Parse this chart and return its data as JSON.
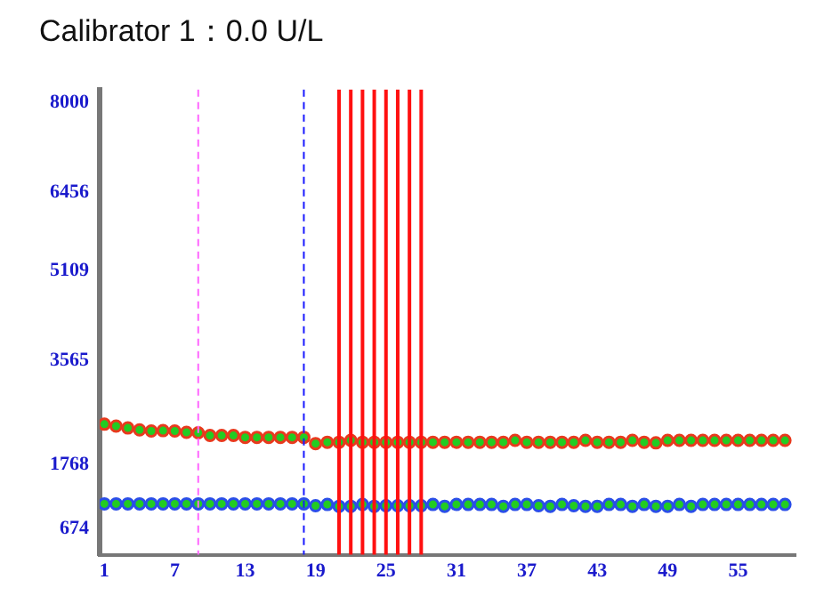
{
  "chart_data": {
    "type": "scatter",
    "title": "Calibrator 1：0.0 U/L",
    "x": [
      1,
      2,
      3,
      4,
      5,
      6,
      7,
      8,
      9,
      10,
      11,
      12,
      13,
      14,
      15,
      16,
      17,
      18,
      19,
      20,
      21,
      22,
      23,
      24,
      25,
      26,
      27,
      28,
      29,
      30,
      31,
      32,
      33,
      34,
      35,
      36,
      37,
      38,
      39,
      40,
      41,
      42,
      43,
      44,
      45,
      46,
      47,
      48,
      49,
      50,
      51,
      52,
      53,
      54,
      55,
      56,
      57,
      58,
      59
    ],
    "series": [
      {
        "color": "#e83a1e",
        "values": [
          2466,
          2433,
          2401,
          2368,
          2349,
          2355,
          2349,
          2326,
          2317,
          2271,
          2271,
          2271,
          2239,
          2239,
          2239,
          2239,
          2239,
          2239,
          2132,
          2155,
          2155,
          2187,
          2155,
          2155,
          2155,
          2155,
          2155,
          2155,
          2155,
          2155,
          2155,
          2155,
          2155,
          2155,
          2155,
          2187,
          2155,
          2155,
          2155,
          2155,
          2155,
          2187,
          2155,
          2155,
          2155,
          2187,
          2155,
          2144,
          2187,
          2187,
          2187,
          2187,
          2187,
          2187,
          2187,
          2187,
          2187,
          2187,
          2187
        ]
      },
      {
        "color": "#2a4ee8",
        "values": [
          1095,
          1095,
          1095,
          1095,
          1095,
          1095,
          1095,
          1095,
          1095,
          1095,
          1095,
          1095,
          1095,
          1095,
          1095,
          1095,
          1095,
          1095,
          1063,
          1085,
          1053,
          1053,
          1085,
          1053,
          1063,
          1063,
          1063,
          1063,
          1085,
          1053,
          1085,
          1085,
          1085,
          1085,
          1053,
          1085,
          1085,
          1063,
          1053,
          1085,
          1063,
          1053,
          1053,
          1085,
          1085,
          1053,
          1085,
          1053,
          1053,
          1085,
          1053,
          1085,
          1085,
          1085,
          1085,
          1085,
          1085,
          1085,
          1085
        ]
      }
    ],
    "xlim": [
      0.6,
      59.9
    ],
    "ylim": [
      220,
      8220
    ],
    "xticks": [
      1,
      7,
      13,
      19,
      25,
      31,
      37,
      43,
      49,
      55
    ],
    "yticks": [
      674,
      1768,
      3565,
      5109,
      6456,
      8000
    ],
    "ref_lines": [
      {
        "axis": "x",
        "value": 9,
        "color": "#ff66ff",
        "line_style": "dashed"
      },
      {
        "axis": "x",
        "value": 18,
        "color": "#1a1aff",
        "line_style": "dashed"
      },
      {
        "axis": "x",
        "value": 21,
        "color": "#ff1010",
        "line_style": "solid"
      },
      {
        "axis": "x",
        "value": 22,
        "color": "#ff1010",
        "line_style": "solid"
      },
      {
        "axis": "x",
        "value": 23,
        "color": "#ff1010",
        "line_style": "solid"
      },
      {
        "axis": "x",
        "value": 24,
        "color": "#ff1010",
        "line_style": "solid"
      },
      {
        "axis": "x",
        "value": 25,
        "color": "#ff1010",
        "line_style": "solid"
      },
      {
        "axis": "x",
        "value": 26,
        "color": "#ff1010",
        "line_style": "solid"
      },
      {
        "axis": "x",
        "value": 27,
        "color": "#ff1010",
        "line_style": "solid"
      },
      {
        "axis": "x",
        "value": 28,
        "color": "#ff1010",
        "line_style": "solid"
      }
    ],
    "grid": false,
    "legend": false,
    "marker": "circle"
  }
}
